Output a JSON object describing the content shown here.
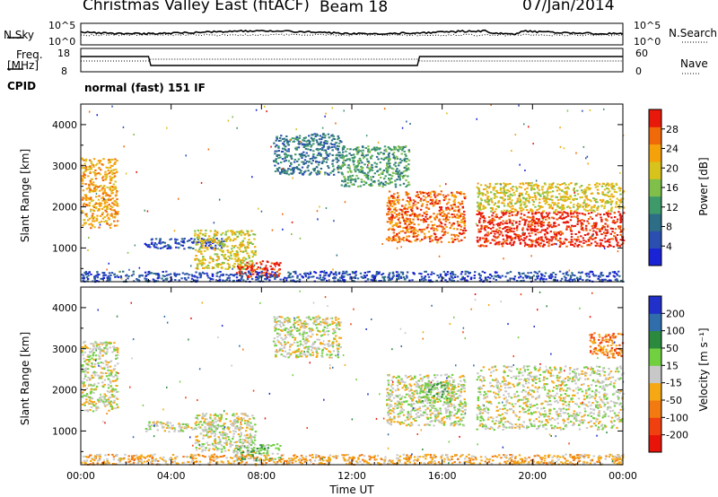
{
  "header": {
    "station": "Christmas Valley East (fitACF)",
    "beam": "Beam 18",
    "date": "07/Jan/2014",
    "mode": "normal (fast) 151 IF"
  },
  "aux_panels": {
    "nsky_label": "N.Sky",
    "nsky_ticks": [
      "10^5",
      "10^0"
    ],
    "nsearch_label": "N.Search",
    "nsearch_ticks": [
      "10^5",
      "10^0"
    ],
    "freq_label": "Freq.",
    "freq_unit": "[MHz]",
    "freq_ticks": [
      "18",
      "8"
    ],
    "nave_label": "Nave",
    "nave_ticks": [
      "60",
      "0"
    ],
    "cpid_label": "CPID"
  },
  "colors": {
    "power": [
      "#1a22d6",
      "#2a4fb0",
      "#2d6e86",
      "#3f9a6a",
      "#7fbf4a",
      "#d8c21c",
      "#f5a20a",
      "#f06a0a",
      "#e8180a"
    ],
    "velocity": [
      "#2130c8",
      "#2f6eaa",
      "#2c8a3e",
      "#70d040",
      "#c8c8c8",
      "#f5a814",
      "#f27a10",
      "#f04010",
      "#e8140a"
    ],
    "nsky_line": "#000000",
    "grid": "#000000"
  },
  "chart_data": [
    {
      "type": "heatmap",
      "name": "power-panel",
      "xlabel": "Time UT",
      "ylabel": "Slant Range [km]",
      "xlim": [
        0,
        24
      ],
      "ylim": [
        180,
        4500
      ],
      "x_ticks": [
        "00:00",
        "04:00",
        "08:00",
        "12:00",
        "16:00",
        "20:00",
        "00:00"
      ],
      "y_ticks": [
        "1000",
        "2000",
        "3000",
        "4000"
      ],
      "y_tick_values": [
        1000,
        2000,
        3000,
        4000
      ],
      "colorbar_label": "Power [dB]",
      "colorbar_ticks": [
        "28",
        "24",
        "20",
        "16",
        "12",
        "8",
        "4"
      ],
      "colorbar_range": [
        0,
        30
      ],
      "regions": [
        {
          "t": [
            0.0,
            1.6
          ],
          "r": [
            1500,
            3200
          ],
          "level": 6
        },
        {
          "t": [
            2.8,
            6.4
          ],
          "r": [
            1000,
            1250
          ],
          "level": 1
        },
        {
          "t": [
            5.0,
            7.7
          ],
          "r": [
            500,
            1450
          ],
          "level": 5
        },
        {
          "t": [
            6.8,
            8.8
          ],
          "r": [
            300,
            700
          ],
          "level": 8
        },
        {
          "t": [
            8.5,
            11.5
          ],
          "r": [
            2800,
            3800
          ],
          "level": 2
        },
        {
          "t": [
            11.5,
            14.5
          ],
          "r": [
            2500,
            3500
          ],
          "level": 3
        },
        {
          "t": [
            13.5,
            17.0
          ],
          "r": [
            1150,
            2400
          ],
          "level": 7
        },
        {
          "t": [
            17.5,
            24.0
          ],
          "r": [
            1050,
            1900
          ],
          "level": 8
        },
        {
          "t": [
            17.5,
            24.0
          ],
          "r": [
            1900,
            2600
          ],
          "level": 5
        },
        {
          "t": [
            0.0,
            24.0
          ],
          "r": [
            200,
            450
          ],
          "level": 1
        }
      ]
    },
    {
      "type": "heatmap",
      "name": "velocity-panel",
      "xlabel": "Time UT",
      "ylabel": "Slant Range [km]",
      "xlim": [
        0,
        24
      ],
      "ylim": [
        180,
        4500
      ],
      "x_ticks": [
        "00:00",
        "04:00",
        "08:00",
        "12:00",
        "16:00",
        "20:00",
        "00:00"
      ],
      "y_ticks": [
        "1000",
        "2000",
        "3000",
        "4000"
      ],
      "y_tick_values": [
        1000,
        2000,
        3000,
        4000
      ],
      "colorbar_label": "Velocity [m s⁻¹]",
      "colorbar_ticks": [
        "200",
        "100",
        "50",
        "15",
        "-15",
        "-50",
        "-100",
        "-200"
      ],
      "colorbar_range": [
        -250,
        250
      ],
      "regions": [
        {
          "t": [
            0.0,
            1.6
          ],
          "r": [
            1500,
            3200
          ],
          "level": 4
        },
        {
          "t": [
            2.8,
            6.4
          ],
          "r": [
            1000,
            1250
          ],
          "level": 4
        },
        {
          "t": [
            5.0,
            7.7
          ],
          "r": [
            500,
            1450
          ],
          "level": 4
        },
        {
          "t": [
            6.8,
            8.8
          ],
          "r": [
            300,
            700
          ],
          "level": 3
        },
        {
          "t": [
            8.5,
            11.5
          ],
          "r": [
            2800,
            3800
          ],
          "level": 4
        },
        {
          "t": [
            13.5,
            17.0
          ],
          "r": [
            1150,
            2400
          ],
          "level": 4
        },
        {
          "t": [
            15.0,
            16.5
          ],
          "r": [
            1700,
            2200
          ],
          "level": 3
        },
        {
          "t": [
            17.5,
            24.0
          ],
          "r": [
            1050,
            2600
          ],
          "level": 4
        },
        {
          "t": [
            22.5,
            24.0
          ],
          "r": [
            2800,
            3400
          ],
          "level": 6
        },
        {
          "t": [
            0.0,
            24.0
          ],
          "r": [
            200,
            450
          ],
          "level": 5
        }
      ]
    }
  ]
}
